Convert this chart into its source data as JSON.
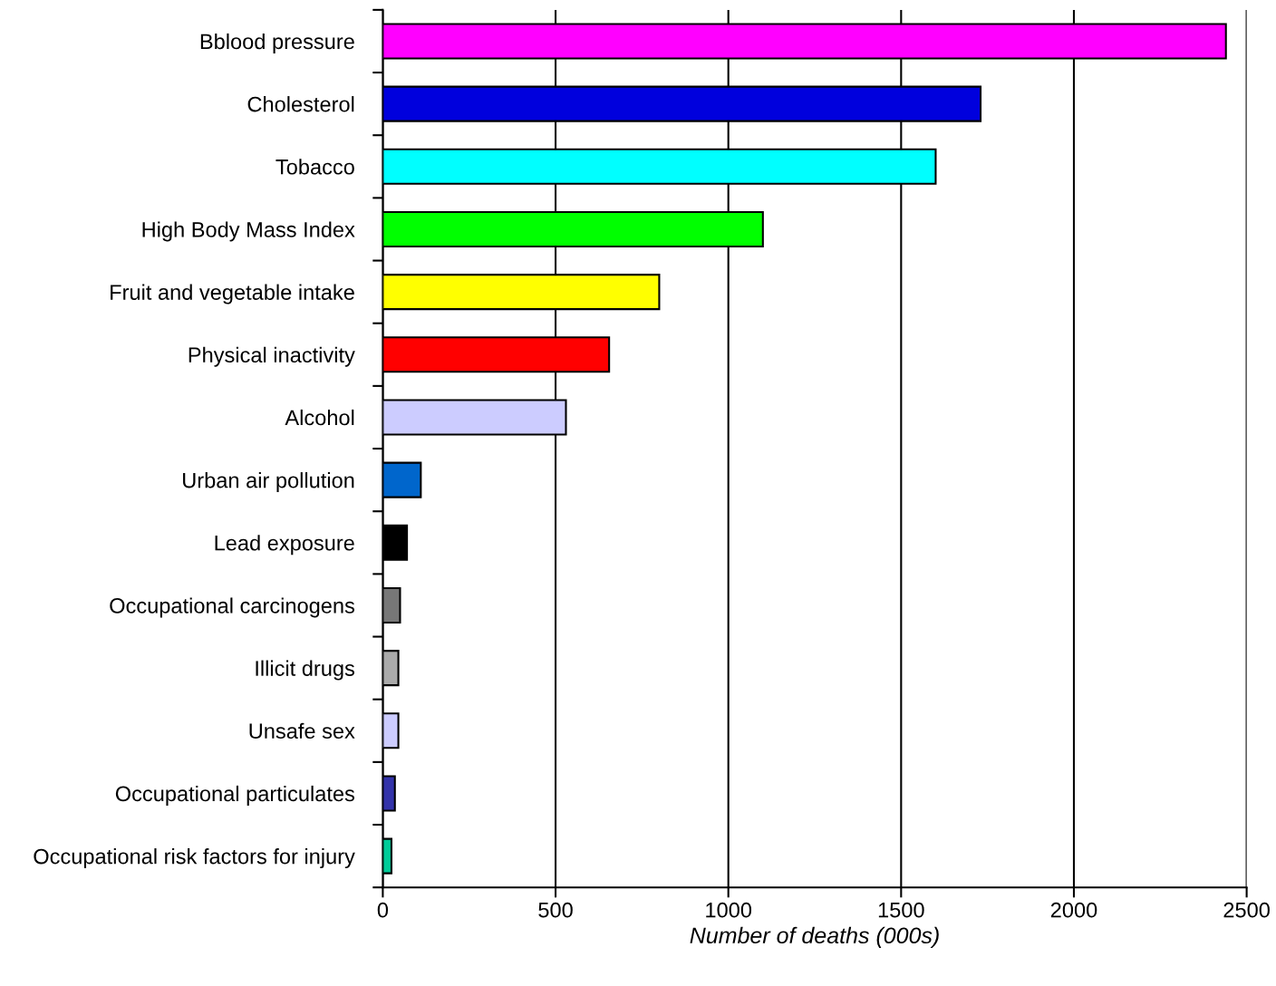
{
  "chart_data": {
    "type": "bar",
    "orientation": "horizontal",
    "xlabel": "Number of deaths (000s)",
    "categories": [
      "Bblood pressure",
      "Cholesterol",
      "Tobacco",
      "High Body Mass Index",
      "Fruit and vegetable intake",
      "Physical inactivity",
      "Alcohol",
      "Urban air pollution",
      "Lead exposure",
      "Occupational carcinogens",
      "Illicit drugs",
      "Unsafe sex",
      "Occupational particulates",
      "Occupational risk factors for injury"
    ],
    "values": [
      2440,
      1730,
      1600,
      1100,
      800,
      655,
      530,
      110,
      70,
      50,
      45,
      45,
      35,
      25
    ],
    "colors": [
      "#ff00ff",
      "#0000dd",
      "#00ffff",
      "#00ff00",
      "#ffff00",
      "#ff0000",
      "#ccccff",
      "#0066cc",
      "#000000",
      "#777777",
      "#aaaaaa",
      "#ccccff",
      "#3333aa",
      "#00cc99"
    ],
    "xlim": [
      0,
      2500
    ],
    "xticks": [
      0,
      500,
      1000,
      1500,
      2000,
      2500
    ],
    "grid": "x",
    "legend": false
  }
}
